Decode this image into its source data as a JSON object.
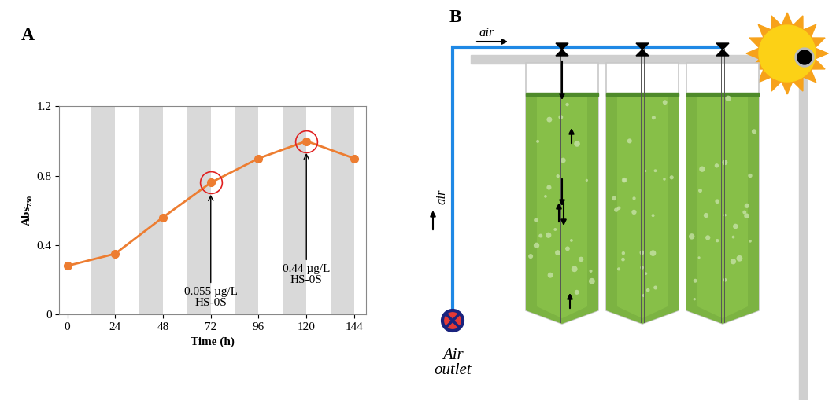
{
  "chart_data": {
    "type": "line",
    "x": [
      0,
      24,
      48,
      72,
      96,
      120,
      144
    ],
    "values": [
      0.28,
      0.35,
      0.56,
      0.76,
      0.9,
      1.0,
      0.9
    ],
    "color": "#ED7D31",
    "marker": "o",
    "line_style": "solid",
    "xlim": [
      -4,
      150
    ],
    "xticks": [
      0,
      24,
      48,
      72,
      96,
      120,
      144
    ],
    "ylim": [
      0,
      1.2
    ],
    "yticks": [
      0,
      0.4,
      0.8,
      1.2
    ],
    "x_label": "Time (h)",
    "y_label": "Abs₇₃₀",
    "dark_periods": [
      [
        12,
        24
      ],
      [
        36,
        48
      ],
      [
        60,
        72
      ],
      [
        84,
        96
      ],
      [
        108,
        120
      ],
      [
        132,
        144
      ]
    ],
    "annotations": [
      {
        "x": 72,
        "y": 0.76,
        "text": "0.055 µg/L\nHS-0S",
        "color": "#e02020"
      },
      {
        "x": 120,
        "y": 1.0,
        "text": "0.44 µg/L\nHS-0S",
        "color": "#e02020"
      }
    ]
  },
  "panel_labels": [
    "A",
    "B"
  ],
  "diagram": {
    "air_top": "air",
    "air_side": "air",
    "outlet": "Air\noutlet",
    "reactors": 3
  }
}
